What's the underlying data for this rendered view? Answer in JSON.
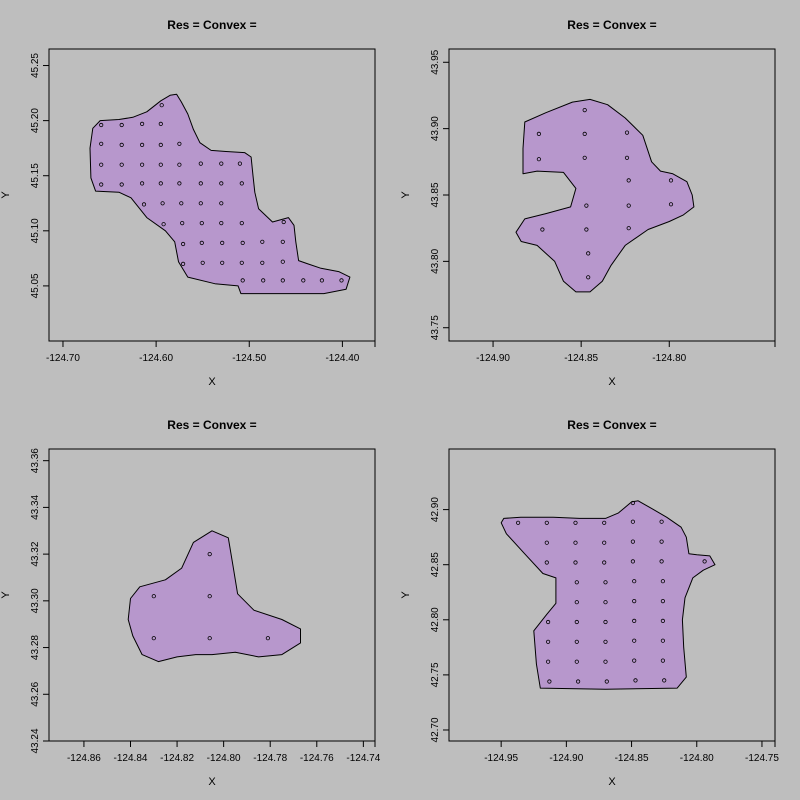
{
  "chart_data": [
    {
      "type": "scatter",
      "title": "Res =  Convex =",
      "xlabel": "X",
      "ylabel": "Y",
      "xlim": [
        -124.715,
        -124.365
      ],
      "ylim": [
        45.0,
        45.265
      ],
      "xticks": [
        "-124.70",
        "-124.60",
        "-124.50",
        "-124.40"
      ],
      "yticks": [
        "45.05",
        "45.10",
        "45.15",
        "45.20",
        "45.25"
      ],
      "polygon_color": "#b797cc",
      "hull": [
        [
          -124.668,
          45.193
        ],
        [
          -124.66,
          45.2
        ],
        [
          -124.64,
          45.201
        ],
        [
          -124.625,
          45.203
        ],
        [
          -124.61,
          45.208
        ],
        [
          -124.595,
          45.218
        ],
        [
          -124.585,
          45.223
        ],
        [
          -124.578,
          45.224
        ],
        [
          -124.573,
          45.217
        ],
        [
          -124.566,
          45.206
        ],
        [
          -124.56,
          45.192
        ],
        [
          -124.553,
          45.18
        ],
        [
          -124.541,
          45.173
        ],
        [
          -124.525,
          45.172
        ],
        [
          -124.505,
          45.171
        ],
        [
          -124.498,
          45.167
        ],
        [
          -124.496,
          45.15
        ],
        [
          -124.494,
          45.135
        ],
        [
          -124.49,
          45.12
        ],
        [
          -124.475,
          45.108
        ],
        [
          -124.458,
          45.112
        ],
        [
          -124.452,
          45.105
        ],
        [
          -124.45,
          45.09
        ],
        [
          -124.447,
          45.073
        ],
        [
          -124.437,
          45.07
        ],
        [
          -124.423,
          45.066
        ],
        [
          -124.404,
          45.063
        ],
        [
          -124.392,
          45.058
        ],
        [
          -124.396,
          45.047
        ],
        [
          -124.42,
          45.043
        ],
        [
          -124.46,
          45.043
        ],
        [
          -124.509,
          45.043
        ],
        [
          -124.512,
          45.05
        ],
        [
          -124.537,
          45.052
        ],
        [
          -124.566,
          45.058
        ],
        [
          -124.576,
          45.072
        ],
        [
          -124.58,
          45.09
        ],
        [
          -124.59,
          45.1
        ],
        [
          -124.61,
          45.112
        ],
        [
          -124.627,
          45.13
        ],
        [
          -124.64,
          45.135
        ],
        [
          -124.665,
          45.136
        ],
        [
          -124.67,
          45.148
        ],
        [
          -124.671,
          45.175
        ]
      ],
      "points": [
        [
          -124.659,
          45.196
        ],
        [
          -124.637,
          45.196
        ],
        [
          -124.615,
          45.197
        ],
        [
          -124.595,
          45.197
        ],
        [
          -124.594,
          45.214
        ],
        [
          -124.659,
          45.179
        ],
        [
          -124.637,
          45.178
        ],
        [
          -124.615,
          45.178
        ],
        [
          -124.595,
          45.178
        ],
        [
          -124.575,
          45.179
        ],
        [
          -124.659,
          45.16
        ],
        [
          -124.637,
          45.16
        ],
        [
          -124.615,
          45.16
        ],
        [
          -124.595,
          45.16
        ],
        [
          -124.575,
          45.16
        ],
        [
          -124.552,
          45.161
        ],
        [
          -124.53,
          45.161
        ],
        [
          -124.51,
          45.161
        ],
        [
          -124.659,
          45.142
        ],
        [
          -124.637,
          45.142
        ],
        [
          -124.615,
          45.143
        ],
        [
          -124.595,
          45.143
        ],
        [
          -124.575,
          45.143
        ],
        [
          -124.552,
          45.143
        ],
        [
          -124.53,
          45.143
        ],
        [
          -124.508,
          45.143
        ],
        [
          -124.613,
          45.124
        ],
        [
          -124.593,
          45.125
        ],
        [
          -124.573,
          45.125
        ],
        [
          -124.552,
          45.125
        ],
        [
          -124.53,
          45.125
        ],
        [
          -124.592,
          45.106
        ],
        [
          -124.572,
          45.107
        ],
        [
          -124.551,
          45.107
        ],
        [
          -124.53,
          45.107
        ],
        [
          -124.508,
          45.107
        ],
        [
          -124.463,
          45.108
        ],
        [
          -124.571,
          45.088
        ],
        [
          -124.551,
          45.089
        ],
        [
          -124.529,
          45.089
        ],
        [
          -124.507,
          45.089
        ],
        [
          -124.486,
          45.09
        ],
        [
          -124.464,
          45.09
        ],
        [
          -124.571,
          45.07
        ],
        [
          -124.55,
          45.071
        ],
        [
          -124.529,
          45.071
        ],
        [
          -124.508,
          45.071
        ],
        [
          -124.486,
          45.071
        ],
        [
          -124.464,
          45.072
        ],
        [
          -124.507,
          45.055
        ],
        [
          -124.485,
          45.055
        ],
        [
          -124.464,
          45.055
        ],
        [
          -124.442,
          45.055
        ],
        [
          -124.422,
          45.055
        ],
        [
          -124.401,
          45.055
        ]
      ]
    },
    {
      "type": "scatter",
      "title": "Res =  Convex =",
      "xlabel": "X",
      "ylabel": "Y",
      "xlim": [
        -124.925,
        -124.74
      ],
      "ylim": [
        43.74,
        43.96
      ],
      "xticks": [
        "-124.90",
        "-124.85",
        "-124.80"
      ],
      "yticks": [
        "43.75",
        "43.80",
        "43.85",
        "43.90",
        "43.95"
      ],
      "polygon_color": "#b797cc",
      "hull": [
        [
          -124.882,
          43.905
        ],
        [
          -124.87,
          43.912
        ],
        [
          -124.855,
          43.92
        ],
        [
          -124.845,
          43.922
        ],
        [
          -124.835,
          43.918
        ],
        [
          -124.825,
          43.908
        ],
        [
          -124.815,
          43.895
        ],
        [
          -124.81,
          43.875
        ],
        [
          -124.805,
          43.868
        ],
        [
          -124.798,
          43.866
        ],
        [
          -124.79,
          43.86
        ],
        [
          -124.787,
          43.85
        ],
        [
          -124.786,
          43.841
        ],
        [
          -124.792,
          43.835
        ],
        [
          -124.8,
          43.83
        ],
        [
          -124.812,
          43.824
        ],
        [
          -124.825,
          43.812
        ],
        [
          -124.833,
          43.797
        ],
        [
          -124.838,
          43.785
        ],
        [
          -124.845,
          43.777
        ],
        [
          -124.853,
          43.777
        ],
        [
          -124.86,
          43.785
        ],
        [
          -124.865,
          43.8
        ],
        [
          -124.875,
          43.812
        ],
        [
          -124.884,
          43.815
        ],
        [
          -124.887,
          43.822
        ],
        [
          -124.882,
          43.832
        ],
        [
          -124.87,
          43.836
        ],
        [
          -124.856,
          43.841
        ],
        [
          -124.853,
          43.855
        ],
        [
          -124.86,
          43.867
        ],
        [
          -124.875,
          43.868
        ],
        [
          -124.883,
          43.866
        ],
        [
          -124.883,
          43.885
        ]
      ],
      "points": [
        [
          -124.848,
          43.914
        ],
        [
          -124.874,
          43.896
        ],
        [
          -124.848,
          43.896
        ],
        [
          -124.824,
          43.897
        ],
        [
          -124.874,
          43.877
        ],
        [
          -124.848,
          43.878
        ],
        [
          -124.824,
          43.878
        ],
        [
          -124.823,
          43.861
        ],
        [
          -124.799,
          43.861
        ],
        [
          -124.847,
          43.842
        ],
        [
          -124.823,
          43.842
        ],
        [
          -124.799,
          43.843
        ],
        [
          -124.872,
          43.824
        ],
        [
          -124.847,
          43.824
        ],
        [
          -124.823,
          43.825
        ],
        [
          -124.846,
          43.806
        ],
        [
          -124.846,
          43.788
        ]
      ]
    },
    {
      "type": "scatter",
      "title": "Res =  Convex =",
      "xlabel": "X",
      "ylabel": "Y",
      "xlim": [
        -124.875,
        -124.735
      ],
      "ylim": [
        43.24,
        43.365
      ],
      "xticks": [
        "-124.86",
        "-124.84",
        "-124.82",
        "-124.80",
        "-124.78",
        "-124.76",
        "-124.74"
      ],
      "yticks": [
        "43.24",
        "43.26",
        "43.28",
        "43.30",
        "43.32",
        "43.34",
        "43.36"
      ],
      "polygon_color": "#b797cc",
      "hull": [
        [
          -124.84,
          43.301
        ],
        [
          -124.836,
          43.306
        ],
        [
          -124.825,
          43.309
        ],
        [
          -124.818,
          43.314
        ],
        [
          -124.813,
          43.325
        ],
        [
          -124.805,
          43.33
        ],
        [
          -124.798,
          43.327
        ],
        [
          -124.796,
          43.315
        ],
        [
          -124.794,
          43.303
        ],
        [
          -124.787,
          43.296
        ],
        [
          -124.775,
          43.292
        ],
        [
          -124.767,
          43.288
        ],
        [
          -124.767,
          43.282
        ],
        [
          -124.775,
          43.277
        ],
        [
          -124.785,
          43.276
        ],
        [
          -124.795,
          43.278
        ],
        [
          -124.805,
          43.277
        ],
        [
          -124.812,
          43.277
        ],
        [
          -124.82,
          43.276
        ],
        [
          -124.828,
          43.274
        ],
        [
          -124.835,
          43.277
        ],
        [
          -124.839,
          43.285
        ],
        [
          -124.841,
          43.292
        ]
      ],
      "points": [
        [
          -124.806,
          43.32
        ],
        [
          -124.83,
          43.302
        ],
        [
          -124.806,
          43.302
        ],
        [
          -124.83,
          43.284
        ],
        [
          -124.806,
          43.284
        ],
        [
          -124.781,
          43.284
        ]
      ]
    },
    {
      "type": "scatter",
      "title": "Res =  Convex =",
      "xlabel": "X",
      "ylabel": "Y",
      "xlim": [
        -124.99,
        -124.74
      ],
      "ylim": [
        42.69,
        42.955
      ],
      "xticks": [
        "-124.95",
        "-124.90",
        "-124.85",
        "-124.80",
        "-124.75"
      ],
      "yticks": [
        "42.70",
        "42.75",
        "42.80",
        "42.85",
        "42.90"
      ],
      "polygon_color": "#b797cc",
      "hull": [
        [
          -124.948,
          42.892
        ],
        [
          -124.935,
          42.893
        ],
        [
          -124.91,
          42.893
        ],
        [
          -124.89,
          42.892
        ],
        [
          -124.87,
          42.892
        ],
        [
          -124.86,
          42.897
        ],
        [
          -124.85,
          42.907
        ],
        [
          -124.845,
          42.908
        ],
        [
          -124.836,
          42.902
        ],
        [
          -124.823,
          42.893
        ],
        [
          -124.812,
          42.884
        ],
        [
          -124.808,
          42.875
        ],
        [
          -124.806,
          42.86
        ],
        [
          -124.8,
          42.859
        ],
        [
          -124.79,
          42.858
        ],
        [
          -124.786,
          42.85
        ],
        [
          -124.795,
          42.845
        ],
        [
          -124.803,
          42.838
        ],
        [
          -124.809,
          42.82
        ],
        [
          -124.811,
          42.8
        ],
        [
          -124.81,
          42.775
        ],
        [
          -124.808,
          42.748
        ],
        [
          -124.815,
          42.738
        ],
        [
          -124.87,
          42.737
        ],
        [
          -124.92,
          42.738
        ],
        [
          -124.923,
          42.76
        ],
        [
          -124.925,
          42.79
        ],
        [
          -124.915,
          42.805
        ],
        [
          -124.908,
          42.815
        ],
        [
          -124.908,
          42.838
        ],
        [
          -124.918,
          42.842
        ],
        [
          -124.932,
          42.86
        ],
        [
          -124.946,
          42.878
        ],
        [
          -124.95,
          42.888
        ]
      ],
      "points": [
        [
          -124.849,
          42.906
        ],
        [
          -124.937,
          42.888
        ],
        [
          -124.915,
          42.888
        ],
        [
          -124.893,
          42.888
        ],
        [
          -124.871,
          42.888
        ],
        [
          -124.849,
          42.889
        ],
        [
          -124.827,
          42.889
        ],
        [
          -124.915,
          42.87
        ],
        [
          -124.893,
          42.87
        ],
        [
          -124.871,
          42.87
        ],
        [
          -124.849,
          42.871
        ],
        [
          -124.827,
          42.871
        ],
        [
          -124.915,
          42.852
        ],
        [
          -124.893,
          42.852
        ],
        [
          -124.871,
          42.852
        ],
        [
          -124.849,
          42.853
        ],
        [
          -124.827,
          42.853
        ],
        [
          -124.794,
          42.853
        ],
        [
          -124.892,
          42.834
        ],
        [
          -124.87,
          42.834
        ],
        [
          -124.848,
          42.835
        ],
        [
          -124.826,
          42.835
        ],
        [
          -124.892,
          42.816
        ],
        [
          -124.87,
          42.816
        ],
        [
          -124.848,
          42.817
        ],
        [
          -124.826,
          42.817
        ],
        [
          -124.914,
          42.798
        ],
        [
          -124.892,
          42.798
        ],
        [
          -124.87,
          42.798
        ],
        [
          -124.848,
          42.799
        ],
        [
          -124.826,
          42.799
        ],
        [
          -124.914,
          42.78
        ],
        [
          -124.892,
          42.78
        ],
        [
          -124.87,
          42.78
        ],
        [
          -124.848,
          42.781
        ],
        [
          -124.826,
          42.781
        ],
        [
          -124.914,
          42.762
        ],
        [
          -124.892,
          42.762
        ],
        [
          -124.87,
          42.762
        ],
        [
          -124.848,
          42.763
        ],
        [
          -124.826,
          42.763
        ],
        [
          -124.913,
          42.744
        ],
        [
          -124.891,
          42.744
        ],
        [
          -124.869,
          42.744
        ],
        [
          -124.847,
          42.745
        ],
        [
          -124.825,
          42.745
        ]
      ]
    }
  ]
}
